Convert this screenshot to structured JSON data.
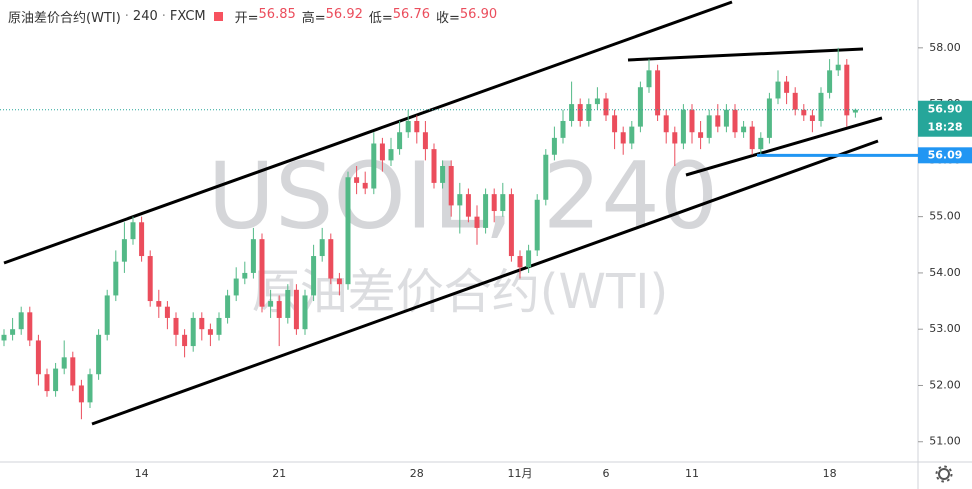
{
  "chart_data": {
    "type": "candlestick",
    "title": "原油差价合约(WTI)",
    "interval": "240",
    "source": "FXCM",
    "watermark": "USOIL, 240",
    "watermark_subtitle": "原油差价合约(WTI)",
    "ohlc_legend": [
      {
        "name": "开=",
        "value": 56.85
      },
      {
        "name": "高=",
        "value": 56.92
      },
      {
        "name": "低=",
        "value": 56.76
      },
      {
        "name": "收=",
        "value": 56.9,
        "value_label": "56.90"
      }
    ],
    "categories": [
      null,
      null,
      null,
      null,
      null,
      null,
      null,
      null,
      null,
      null,
      null,
      null,
      null,
      null,
      null,
      null,
      "14",
      null,
      null,
      null,
      null,
      null,
      null,
      null,
      null,
      null,
      null,
      null,
      null,
      null,
      null,
      null,
      "21",
      null,
      null,
      null,
      null,
      null,
      null,
      null,
      null,
      null,
      null,
      null,
      null,
      null,
      null,
      null,
      "28",
      null,
      null,
      null,
      null,
      null,
      null,
      null,
      null,
      null,
      null,
      null,
      "11月",
      null,
      null,
      null,
      null,
      null,
      null,
      null,
      null,
      null,
      "6",
      null,
      null,
      null,
      null,
      null,
      null,
      null,
      null,
      null,
      "11",
      null,
      null,
      null,
      null,
      null,
      null,
      null,
      null,
      null,
      null,
      null,
      null,
      null,
      null,
      null,
      "18",
      null,
      null,
      null
    ],
    "open": [
      52.8,
      52.9,
      53.0,
      53.3,
      52.8,
      52.2,
      51.9,
      52.3,
      52.5,
      52.0,
      51.7,
      52.2,
      52.9,
      53.6,
      54.2,
      54.6,
      54.9,
      54.3,
      53.5,
      53.4,
      53.2,
      52.9,
      52.7,
      53.2,
      53.0,
      52.9,
      53.2,
      53.6,
      53.9,
      54.0,
      54.6,
      53.4,
      53.5,
      53.2,
      53.7,
      53.0,
      53.6,
      54.3,
      54.6,
      53.9,
      53.8,
      55.7,
      55.6,
      55.5,
      56.3,
      56.0,
      56.2,
      56.5,
      56.7,
      56.5,
      56.2,
      55.6,
      55.9,
      55.2,
      55.4,
      55.0,
      54.8,
      55.4,
      55.1,
      55.4,
      54.3,
      54.1,
      54.4,
      55.3,
      56.1,
      56.4,
      56.7,
      57.0,
      56.7,
      57.0,
      57.1,
      56.8,
      56.5,
      56.3,
      56.6,
      57.3,
      57.6,
      56.8,
      56.5,
      56.3,
      56.9,
      56.5,
      56.4,
      56.8,
      56.6,
      56.9,
      56.5,
      56.6,
      56.2,
      56.4,
      57.1,
      57.4,
      57.2,
      56.9,
      56.8,
      56.7,
      57.2,
      57.6,
      57.7,
      56.85
    ],
    "high": [
      53.0,
      53.2,
      53.4,
      53.4,
      52.9,
      52.3,
      52.4,
      52.8,
      52.6,
      52.1,
      52.3,
      53.0,
      53.7,
      54.4,
      54.9,
      55.0,
      55.0,
      54.4,
      53.7,
      53.5,
      53.3,
      53.0,
      53.3,
      53.3,
      53.1,
      53.3,
      53.7,
      54.1,
      54.2,
      54.8,
      54.7,
      53.7,
      53.6,
      53.8,
      53.8,
      53.7,
      54.5,
      54.8,
      54.7,
      54.0,
      55.8,
      55.9,
      55.8,
      56.5,
      56.4,
      56.4,
      56.7,
      56.9,
      56.8,
      56.7,
      56.3,
      56.0,
      56.0,
      55.6,
      55.5,
      55.2,
      55.5,
      55.5,
      55.6,
      55.5,
      54.4,
      54.5,
      55.4,
      56.2,
      56.6,
      56.9,
      57.4,
      57.1,
      57.1,
      57.3,
      57.2,
      56.9,
      56.6,
      56.7,
      57.4,
      57.8,
      57.7,
      56.9,
      56.6,
      57.0,
      57.0,
      56.7,
      56.9,
      57.0,
      57.0,
      57.0,
      56.7,
      56.7,
      56.5,
      57.2,
      57.6,
      57.5,
      57.3,
      57.0,
      56.9,
      57.3,
      57.8,
      58.0,
      57.8,
      56.92
    ],
    "low": [
      52.7,
      52.8,
      52.9,
      52.7,
      52.0,
      51.8,
      51.8,
      52.2,
      51.9,
      51.4,
      51.6,
      52.1,
      52.8,
      53.5,
      54.0,
      54.5,
      54.2,
      53.4,
      53.2,
      53.0,
      52.7,
      52.5,
      52.6,
      52.8,
      52.7,
      52.8,
      53.1,
      53.5,
      53.8,
      53.9,
      53.3,
      53.2,
      52.7,
      53.1,
      52.9,
      52.9,
      53.5,
      54.2,
      53.8,
      53.6,
      53.7,
      55.4,
      55.4,
      55.4,
      55.8,
      55.9,
      56.1,
      56.4,
      56.3,
      56.0,
      55.5,
      55.5,
      55.0,
      54.7,
      54.9,
      54.5,
      54.7,
      54.9,
      55.0,
      54.2,
      53.9,
      54.0,
      54.3,
      55.2,
      56.0,
      56.3,
      56.6,
      56.6,
      56.6,
      56.9,
      56.7,
      56.2,
      56.1,
      56.2,
      56.5,
      57.2,
      56.7,
      56.3,
      55.9,
      56.2,
      56.3,
      56.2,
      56.3,
      56.5,
      56.5,
      56.4,
      56.4,
      56.1,
      56.1,
      56.3,
      57.0,
      57.0,
      56.8,
      56.7,
      56.5,
      56.6,
      57.1,
      57.5,
      56.6,
      56.76
    ],
    "close": [
      52.9,
      53.0,
      53.3,
      52.8,
      52.2,
      51.9,
      52.3,
      52.5,
      52.0,
      51.7,
      52.2,
      52.9,
      53.6,
      54.2,
      54.6,
      54.9,
      54.3,
      53.5,
      53.4,
      53.2,
      52.9,
      52.7,
      53.2,
      53.0,
      52.9,
      53.2,
      53.6,
      53.9,
      54.0,
      54.6,
      53.4,
      53.5,
      53.2,
      53.7,
      53.0,
      53.6,
      54.3,
      54.6,
      53.9,
      53.8,
      55.7,
      55.6,
      55.5,
      56.3,
      56.0,
      56.2,
      56.5,
      56.7,
      56.5,
      56.2,
      55.6,
      55.9,
      55.2,
      55.4,
      55.0,
      54.8,
      55.4,
      55.1,
      55.4,
      54.3,
      54.1,
      54.4,
      55.3,
      56.1,
      56.4,
      56.7,
      57.0,
      56.7,
      57.0,
      57.1,
      56.8,
      56.5,
      56.3,
      56.6,
      57.3,
      57.6,
      56.8,
      56.5,
      56.3,
      56.9,
      56.5,
      56.4,
      56.8,
      56.6,
      56.9,
      56.5,
      56.6,
      56.2,
      56.4,
      57.1,
      57.4,
      57.2,
      56.9,
      56.8,
      56.7,
      57.2,
      57.6,
      57.7,
      56.8,
      56.9
    ],
    "up_color": "#53b987",
    "down_color": "#eb4d5c",
    "ylim": [
      50.64,
      58.85
    ],
    "yticks": [
      {
        "value": 51,
        "label": "51.00"
      },
      {
        "value": 52,
        "label": "52.00"
      },
      {
        "value": 53,
        "label": "53.00"
      },
      {
        "value": 54,
        "label": "54.00"
      },
      {
        "value": 55,
        "label": "55.00"
      },
      {
        "value": 56,
        "label": "56.00"
      },
      {
        "value": 57,
        "label": "57.00"
      },
      {
        "value": 58,
        "label": "58.00"
      }
    ],
    "last_price": {
      "value": 56.9,
      "label": "56.90",
      "countdown": "18:28",
      "color": "#26a69a"
    },
    "level_line": {
      "value": 56.09,
      "label": "56.09",
      "color": "#2196f3"
    }
  }
}
